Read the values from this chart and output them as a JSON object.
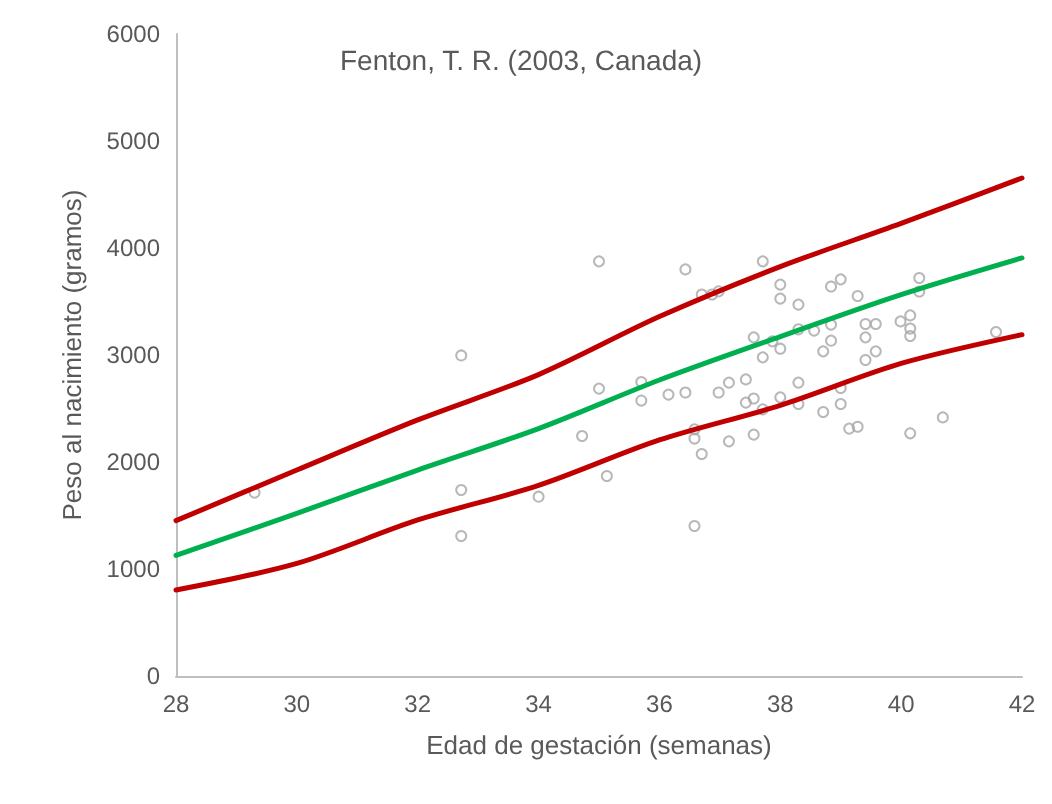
{
  "chart_data": {
    "type": "scatter",
    "title": "Fenton, T. R. (2003, Canada)",
    "xlabel": "Edad de gestación (semanas)",
    "ylabel": "Peso al nacimiento (gramos)",
    "xlim": [
      28,
      42
    ],
    "xticks": [
      28,
      30,
      32,
      34,
      36,
      38,
      40,
      42
    ],
    "ylim": [
      0,
      6000
    ],
    "yticks": [
      0,
      1000,
      2000,
      3000,
      4000,
      5000,
      6000
    ],
    "grid": false,
    "series": [
      {
        "color": "#a6a6a6",
        "marker": "circle",
        "x": [
          35.0,
          36.43,
          37.71,
          36.7,
          36.87,
          36.98,
          38.0,
          38.0,
          38.3,
          38.84,
          39.0,
          39.28,
          40.3,
          40.3,
          39.41,
          39.58,
          39.99,
          40.15,
          40.15,
          40.15,
          39.41,
          39.58,
          39.41,
          38.3,
          38.56,
          38.84,
          38.84,
          38.71,
          37.56,
          37.87,
          37.71,
          38.0,
          35.7,
          35.7,
          37.15,
          37.43,
          38.3,
          36.15,
          36.43,
          36.98,
          37.43,
          37.56,
          38.0,
          38.3,
          37.71,
          39.0,
          39.0,
          38.71,
          35.0,
          34.72,
          36.58,
          36.58,
          37.56,
          37.15,
          36.7,
          35.13,
          39.14,
          39.28,
          40.15,
          40.69,
          41.57,
          36.58,
          29.3,
          32.72,
          32.72,
          32.72,
          34.0
        ],
        "values": [
          3875,
          3800,
          3875,
          3565,
          3565,
          3595,
          3658,
          3527,
          3471,
          3640,
          3707,
          3551,
          3720,
          3594,
          3290,
          3290,
          3314,
          3370,
          3247,
          3178,
          3165,
          3034,
          2953,
          3240,
          3228,
          3284,
          3134,
          3034,
          3165,
          3128,
          2978,
          3059,
          2748,
          2574,
          2742,
          2772,
          2742,
          2630,
          2649,
          2649,
          2555,
          2593,
          2604,
          2542,
          2492,
          2692,
          2542,
          2467,
          2686,
          2243,
          2305,
          2219,
          2256,
          2193,
          2075,
          1869,
          2312,
          2330,
          2268,
          2417,
          3215,
          1402,
          1714,
          2996,
          1738,
          1308,
          1676
        ]
      },
      {
        "type": "line",
        "color": "#c00000",
        "marker": "none",
        "x": [
          28,
          30,
          32,
          34,
          36,
          38,
          40,
          42
        ],
        "values": [
          1452,
          1925,
          2393,
          2817,
          3359,
          3826,
          4230,
          4654
        ]
      },
      {
        "type": "line",
        "color": "#00b050",
        "marker": "none",
        "x": [
          28,
          30,
          32,
          34,
          36,
          38,
          40,
          42
        ],
        "values": [
          1127,
          1520,
          1925,
          2312,
          2766,
          3172,
          3564,
          3907
        ]
      },
      {
        "type": "line",
        "color": "#c00000",
        "marker": "none",
        "x": [
          28,
          30,
          32,
          34,
          36,
          38,
          40,
          42
        ],
        "values": [
          804,
          1052,
          1458,
          1781,
          2206,
          2529,
          2921,
          3190
        ]
      }
    ]
  }
}
